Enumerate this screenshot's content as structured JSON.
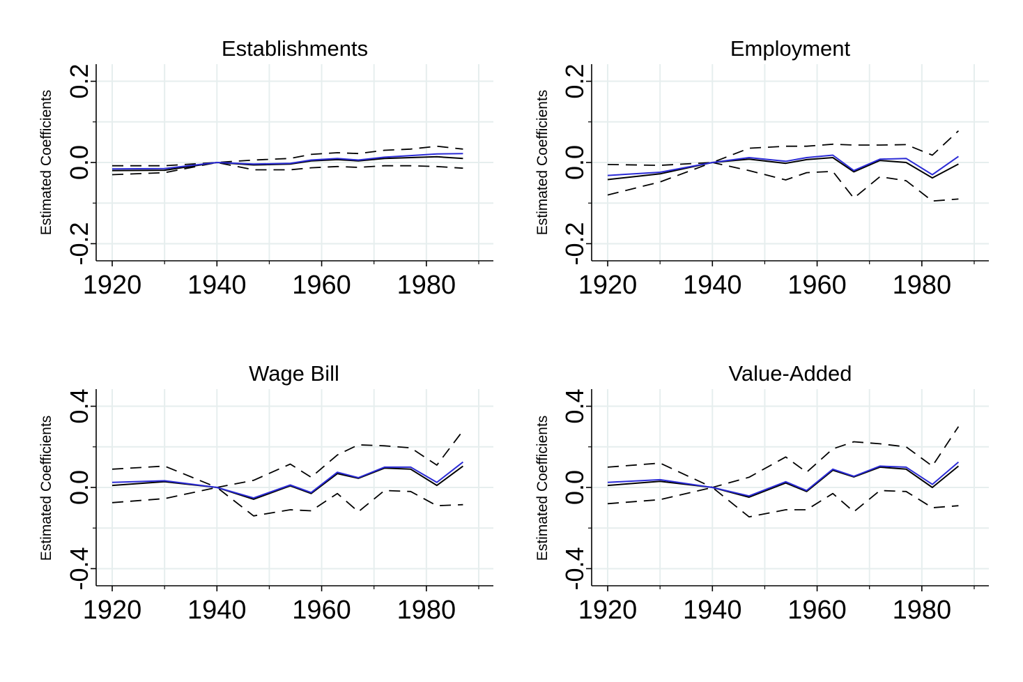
{
  "chart_data": [
    {
      "type": "line",
      "title": "Establishments",
      "ylabel": "Estimated Coefficients",
      "xlabel": "",
      "xlim": [
        1918,
        1992
      ],
      "ylim": [
        -0.225,
        0.225
      ],
      "xticks": [
        1920,
        1940,
        1960,
        1980
      ],
      "xminor": [
        1930,
        1950,
        1970,
        1990
      ],
      "yticks": [
        -0.2,
        0,
        0.2
      ],
      "ytick_labels": [
        "-0.2",
        "0.0",
        "0.2"
      ],
      "yminor": [
        -0.1,
        0.1
      ],
      "grid": true,
      "x": [
        1920,
        1930,
        1940,
        1947,
        1954,
        1958,
        1963,
        1967,
        1972,
        1977,
        1982,
        1987
      ],
      "series": [
        {
          "style": "blue",
          "values": [
            -0.016,
            -0.015,
            0.0,
            -0.004,
            -0.002,
            0.006,
            0.01,
            0.006,
            0.013,
            0.017,
            0.021,
            0.022
          ]
        },
        {
          "style": "solid",
          "values": [
            -0.02,
            -0.019,
            0.0,
            -0.006,
            -0.004,
            0.004,
            0.007,
            0.004,
            0.01,
            0.012,
            0.014,
            0.01
          ]
        },
        {
          "style": "dashed",
          "values": [
            -0.008,
            -0.008,
            0.0,
            0.006,
            0.01,
            0.02,
            0.024,
            0.022,
            0.03,
            0.033,
            0.04,
            0.033
          ]
        },
        {
          "style": "dashed",
          "values": [
            -0.03,
            -0.025,
            0.0,
            -0.018,
            -0.018,
            -0.013,
            -0.01,
            -0.012,
            -0.008,
            -0.008,
            -0.01,
            -0.014
          ]
        }
      ]
    },
    {
      "type": "line",
      "title": "Employment",
      "ylabel": "Estimated Coefficients",
      "xlabel": "",
      "xlim": [
        1918,
        1992
      ],
      "ylim": [
        -0.225,
        0.225
      ],
      "xticks": [
        1920,
        1940,
        1960,
        1980
      ],
      "xminor": [
        1930,
        1950,
        1970,
        1990
      ],
      "yticks": [
        -0.2,
        0,
        0.2
      ],
      "ytick_labels": [
        "-0.2",
        "0.0",
        "0.2"
      ],
      "yminor": [
        -0.1,
        0.1
      ],
      "grid": true,
      "x": [
        1920,
        1930,
        1940,
        1947,
        1954,
        1958,
        1963,
        1967,
        1972,
        1977,
        1982,
        1987
      ],
      "series": [
        {
          "style": "blue",
          "values": [
            -0.032,
            -0.024,
            0.0,
            0.012,
            0.003,
            0.012,
            0.018,
            -0.02,
            0.008,
            0.01,
            -0.03,
            0.015
          ]
        },
        {
          "style": "solid",
          "values": [
            -0.042,
            -0.028,
            0.0,
            0.008,
            -0.002,
            0.007,
            0.012,
            -0.023,
            0.005,
            0.0,
            -0.038,
            -0.004
          ]
        },
        {
          "style": "dashed",
          "values": [
            -0.005,
            -0.007,
            0.0,
            0.035,
            0.04,
            0.04,
            0.045,
            0.043,
            0.043,
            0.044,
            0.018,
            0.078
          ]
        },
        {
          "style": "dashed",
          "values": [
            -0.08,
            -0.048,
            0.0,
            -0.02,
            -0.043,
            -0.025,
            -0.022,
            -0.088,
            -0.035,
            -0.045,
            -0.095,
            -0.09
          ]
        }
      ]
    },
    {
      "type": "line",
      "title": "Wage Bill",
      "ylabel": "Estimated Coefficients",
      "xlabel": "",
      "xlim": [
        1918,
        1992
      ],
      "ylim": [
        -0.45,
        0.45
      ],
      "xticks": [
        1920,
        1940,
        1960,
        1980
      ],
      "xminor": [
        1930,
        1950,
        1970,
        1990
      ],
      "yticks": [
        -0.4,
        0,
        0.4
      ],
      "ytick_labels": [
        "-0.4",
        "0.0",
        "0.4"
      ],
      "yminor": [
        -0.2,
        0.2
      ],
      "grid": true,
      "x": [
        1920,
        1930,
        1940,
        1947,
        1954,
        1958,
        1963,
        1967,
        1972,
        1977,
        1982,
        1987
      ],
      "series": [
        {
          "style": "blue",
          "values": [
            0.025,
            0.033,
            0.0,
            -0.052,
            0.012,
            -0.025,
            0.075,
            0.048,
            0.1,
            0.1,
            0.025,
            0.125
          ]
        },
        {
          "style": "solid",
          "values": [
            0.01,
            0.028,
            0.0,
            -0.058,
            0.008,
            -0.03,
            0.068,
            0.045,
            0.095,
            0.09,
            0.01,
            0.105
          ]
        },
        {
          "style": "dashed",
          "values": [
            0.09,
            0.105,
            0.0,
            0.035,
            0.115,
            0.05,
            0.16,
            0.21,
            0.205,
            0.195,
            0.11,
            0.28
          ]
        },
        {
          "style": "dashed",
          "values": [
            -0.075,
            -0.055,
            0.0,
            -0.14,
            -0.11,
            -0.115,
            -0.03,
            -0.12,
            -0.015,
            -0.02,
            -0.09,
            -0.085
          ]
        }
      ]
    },
    {
      "type": "line",
      "title": "Value-Added",
      "ylabel": "Estimated Coefficients",
      "xlabel": "",
      "xlim": [
        1918,
        1992
      ],
      "ylim": [
        -0.45,
        0.45
      ],
      "xticks": [
        1920,
        1940,
        1960,
        1980
      ],
      "xminor": [
        1930,
        1950,
        1970,
        1990
      ],
      "yticks": [
        -0.4,
        0,
        0.4
      ],
      "ytick_labels": [
        "-0.4",
        "0.0",
        "0.4"
      ],
      "yminor": [
        -0.2,
        0.2
      ],
      "grid": true,
      "x": [
        1920,
        1930,
        1940,
        1947,
        1954,
        1958,
        1963,
        1967,
        1972,
        1977,
        1982,
        1987
      ],
      "series": [
        {
          "style": "blue",
          "values": [
            0.025,
            0.038,
            0.0,
            -0.042,
            0.028,
            -0.015,
            0.09,
            0.055,
            0.105,
            0.1,
            0.015,
            0.125
          ]
        },
        {
          "style": "solid",
          "values": [
            0.01,
            0.03,
            0.0,
            -0.048,
            0.022,
            -0.02,
            0.085,
            0.052,
            0.1,
            0.09,
            0.0,
            0.105
          ]
        },
        {
          "style": "dashed",
          "values": [
            0.1,
            0.12,
            0.0,
            0.05,
            0.15,
            0.075,
            0.19,
            0.225,
            0.215,
            0.2,
            0.105,
            0.3
          ]
        },
        {
          "style": "dashed",
          "values": [
            -0.08,
            -0.06,
            0.0,
            -0.145,
            -0.11,
            -0.11,
            -0.03,
            -0.12,
            -0.015,
            -0.02,
            -0.1,
            -0.09
          ]
        }
      ]
    }
  ],
  "colors": {
    "blue_series": "#2b2bd6",
    "black_series": "#000000",
    "grid": "#e6eeee",
    "axis": "#000000"
  }
}
